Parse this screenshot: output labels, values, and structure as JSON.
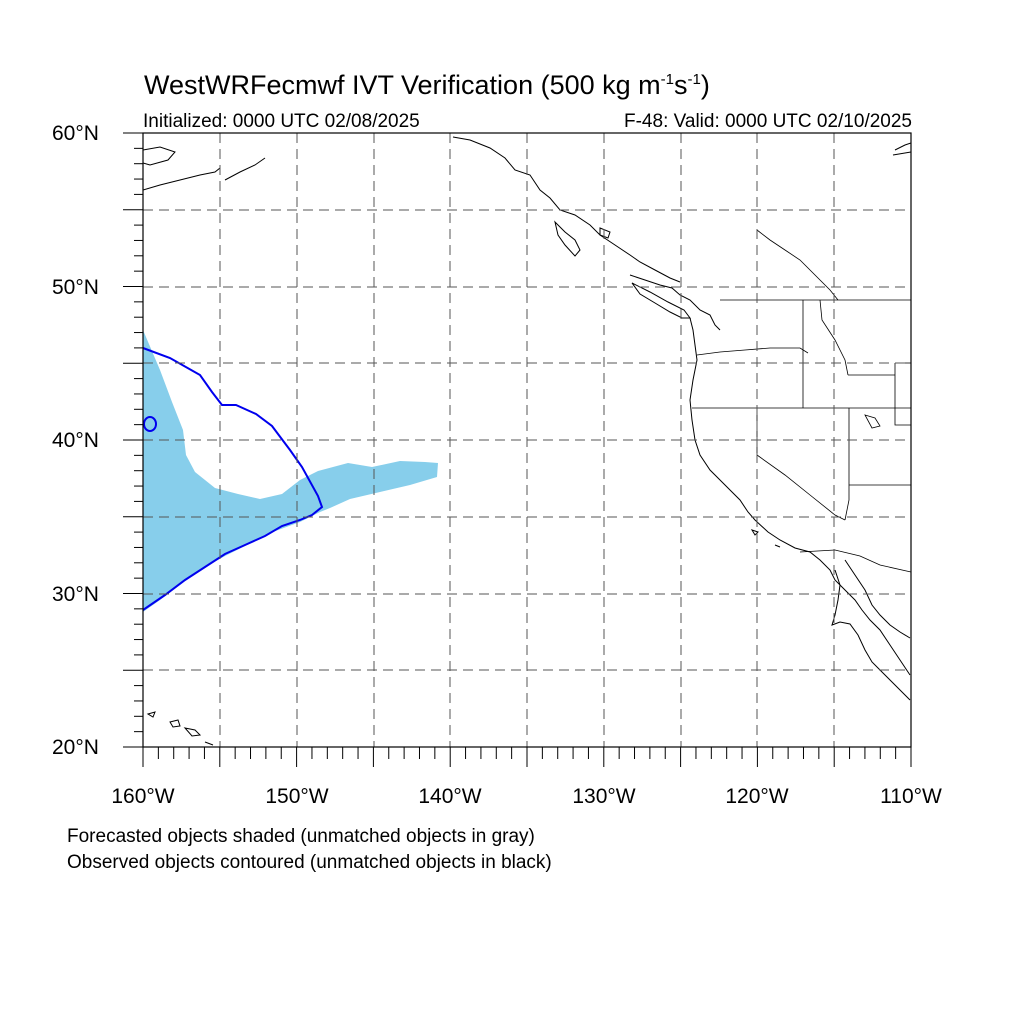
{
  "title": {
    "main": "WestWRFecmwf IVT Verification (500 kg m",
    "exp1": "-1",
    "mid": "s",
    "exp2": "-1",
    "end": ")"
  },
  "subtitle": {
    "initialized": "Initialized: 0000 UTC 02/08/2025",
    "valid": "F-48: Valid: 0000 UTC 02/10/2025"
  },
  "axes": {
    "lat_labels": [
      "60°N",
      "50°N",
      "40°N",
      "30°N",
      "20°N"
    ],
    "lon_labels": [
      "160°W",
      "150°W",
      "140°W",
      "130°W",
      "120°W",
      "110°W"
    ],
    "lat_range": [
      20,
      60
    ],
    "lon_range": [
      -160,
      -110
    ],
    "grid_spacing_deg": 5
  },
  "legend": {
    "line1": "Forecasted objects shaded (unmatched objects in gray)",
    "line2": "Observed objects contoured (unmatched objects in black)"
  },
  "colors": {
    "forecast_fill": "#87ceeb",
    "observed_contour": "#0000ee",
    "coastline": "#000000",
    "grid": "#555555"
  }
}
